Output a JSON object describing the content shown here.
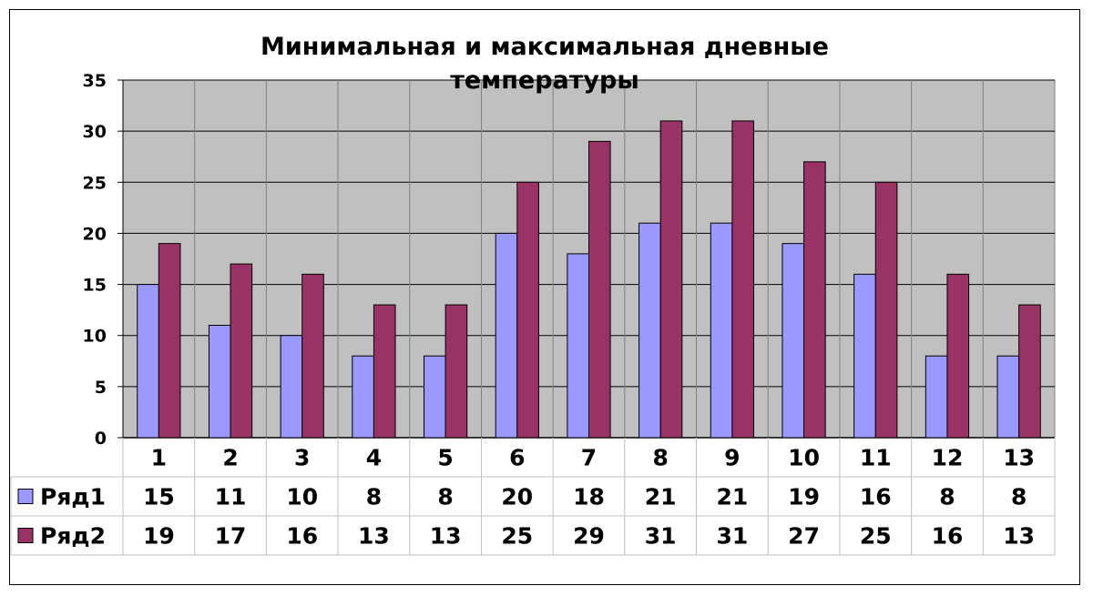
{
  "chart_data": {
    "type": "bar",
    "title": "Минимальная и максимальная дневные температуры",
    "title_lines": [
      "Минимальная и максимальная дневные",
      "температуры"
    ],
    "categories": [
      "1",
      "2",
      "3",
      "4",
      "5",
      "6",
      "7",
      "8",
      "9",
      "10",
      "11",
      "12",
      "13"
    ],
    "series": [
      {
        "name": "Ряд1",
        "values": [
          15,
          11,
          10,
          8,
          8,
          20,
          18,
          21,
          21,
          19,
          16,
          8,
          8
        ],
        "color": "#9999ff"
      },
      {
        "name": "Ряд2",
        "values": [
          19,
          17,
          16,
          13,
          13,
          25,
          29,
          31,
          31,
          27,
          25,
          16,
          13
        ],
        "color": "#993366"
      }
    ],
    "ylim": [
      0,
      35
    ],
    "yticks": [
      0,
      5,
      10,
      15,
      20,
      25,
      30,
      35
    ],
    "grid": true,
    "plot_background": "#c0c0c0",
    "data_table": true,
    "xlabel": "",
    "ylabel": ""
  }
}
